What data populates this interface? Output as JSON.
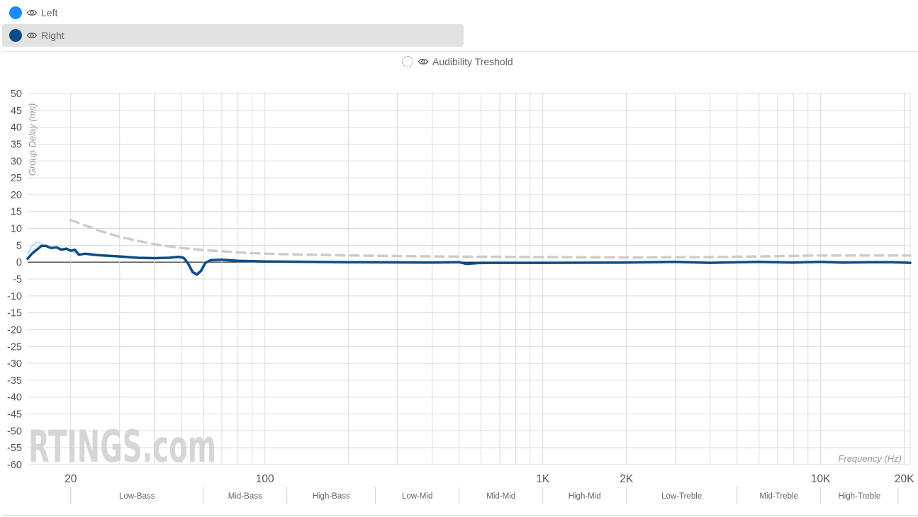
{
  "legend": {
    "items": [
      {
        "label": "Left",
        "color": "#1a8cff",
        "selected": false
      },
      {
        "label": "Right",
        "color": "#0b4c87",
        "selected": true
      }
    ],
    "threshold_label": "Audibility Treshold"
  },
  "chart_data": {
    "type": "line",
    "ylabel": "Group Delay (ms)",
    "xlabel": "Frequency (Hz)",
    "xscale": "log",
    "xlim": [
      14,
      21000
    ],
    "ylim": [
      -60,
      50
    ],
    "yticks": [
      50,
      45,
      40,
      35,
      30,
      25,
      20,
      15,
      10,
      5,
      0,
      -5,
      -10,
      -15,
      -20,
      -25,
      -30,
      -35,
      -40,
      -45,
      -50,
      -55,
      -60
    ],
    "xtick_labels": [
      {
        "value": 20,
        "label": "20"
      },
      {
        "value": 100,
        "label": "100"
      },
      {
        "value": 1000,
        "label": "1K"
      },
      {
        "value": 2000,
        "label": "2K"
      },
      {
        "value": 10000,
        "label": "10K"
      },
      {
        "value": 20000,
        "label": "20K"
      }
    ],
    "bands": [
      {
        "label": "Low-Bass",
        "from": 20,
        "to": 60
      },
      {
        "label": "Mid-Bass",
        "from": 60,
        "to": 120
      },
      {
        "label": "High-Bass",
        "from": 120,
        "to": 250
      },
      {
        "label": "Low-Mid",
        "from": 250,
        "to": 500
      },
      {
        "label": "Mid-Mid",
        "from": 500,
        "to": 1000
      },
      {
        "label": "High-Mid",
        "from": 1000,
        "to": 2000
      },
      {
        "label": "Low-Treble",
        "from": 2000,
        "to": 5000
      },
      {
        "label": "Mid-Treble",
        "from": 5000,
        "to": 10000
      },
      {
        "label": "High-Treble",
        "from": 10000,
        "to": 19000
      }
    ],
    "grid": true,
    "watermark": "RTINGS.com",
    "series": [
      {
        "name": "Left",
        "color": "#a8d4f5",
        "width": 1.5,
        "points": [
          [
            14,
            2.5
          ],
          [
            14.6,
            5
          ],
          [
            15.2,
            6
          ],
          [
            16,
            5
          ],
          [
            17,
            4.5
          ],
          [
            18,
            4
          ],
          [
            19,
            4
          ],
          [
            20,
            3.5
          ],
          [
            21,
            2.5
          ],
          [
            23,
            2.3
          ],
          [
            26,
            2
          ],
          [
            30,
            1.6
          ],
          [
            35,
            1.3
          ],
          [
            40,
            1.2
          ],
          [
            45,
            1.2
          ],
          [
            50,
            1.3
          ],
          [
            52,
            0.5
          ],
          [
            54,
            -1.5
          ],
          [
            56,
            -3.2
          ],
          [
            58,
            -2.8
          ],
          [
            60,
            -1
          ],
          [
            62,
            0.2
          ],
          [
            65,
            0.8
          ],
          [
            70,
            0.6
          ],
          [
            80,
            0.3
          ],
          [
            100,
            0.1
          ],
          [
            200,
            -0.1
          ],
          [
            500,
            -0.2
          ],
          [
            600,
            -0.5
          ],
          [
            700,
            -0.2
          ],
          [
            1000,
            -0.2
          ],
          [
            2000,
            0
          ],
          [
            3000,
            0.1
          ],
          [
            5000,
            -0.1
          ],
          [
            10000,
            0
          ],
          [
            20000,
            -0.2
          ],
          [
            21000,
            -0.2
          ]
        ]
      },
      {
        "name": "Right",
        "color": "#0b4c87",
        "width": 3.5,
        "points": [
          [
            14,
            1
          ],
          [
            14.5,
            2.5
          ],
          [
            15,
            3.5
          ],
          [
            15.7,
            4.8
          ],
          [
            16.3,
            4.8
          ],
          [
            17,
            4.2
          ],
          [
            17.8,
            4.4
          ],
          [
            18.5,
            3.7
          ],
          [
            19.3,
            4
          ],
          [
            20,
            3.4
          ],
          [
            20.7,
            3.7
          ],
          [
            21.4,
            2.2
          ],
          [
            22.5,
            2.5
          ],
          [
            25,
            2.1
          ],
          [
            30,
            1.7
          ],
          [
            35,
            1.3
          ],
          [
            40,
            1.2
          ],
          [
            45,
            1.3
          ],
          [
            49,
            1.6
          ],
          [
            51,
            1.3
          ],
          [
            53,
            -0.5
          ],
          [
            55,
            -3
          ],
          [
            57,
            -3.7
          ],
          [
            59,
            -2.5
          ],
          [
            61,
            -0.2
          ],
          [
            64,
            0.6
          ],
          [
            70,
            0.7
          ],
          [
            80,
            0.4
          ],
          [
            100,
            0.2
          ],
          [
            200,
            0
          ],
          [
            400,
            -0.1
          ],
          [
            500,
            0
          ],
          [
            530,
            -0.5
          ],
          [
            600,
            -0.2
          ],
          [
            800,
            -0.2
          ],
          [
            1000,
            -0.2
          ],
          [
            2000,
            -0.1
          ],
          [
            3000,
            0.1
          ],
          [
            4000,
            -0.2
          ],
          [
            6000,
            0.1
          ],
          [
            8000,
            -0.1
          ],
          [
            10000,
            0.1
          ],
          [
            12000,
            -0.1
          ],
          [
            15000,
            0
          ],
          [
            18000,
            0
          ],
          [
            21000,
            -0.2
          ]
        ]
      },
      {
        "name": "Audibility Treshold",
        "color": "#cccccc",
        "width": 3.5,
        "dash": "12 8",
        "points": [
          [
            20,
            12.5
          ],
          [
            25,
            9.5
          ],
          [
            30,
            7.5
          ],
          [
            40,
            5.3
          ],
          [
            50,
            4.2
          ],
          [
            60,
            3.6
          ],
          [
            80,
            2.9
          ],
          [
            100,
            2.5
          ],
          [
            150,
            2.2
          ],
          [
            200,
            2
          ],
          [
            400,
            1.7
          ],
          [
            1000,
            1.5
          ],
          [
            2000,
            1.4
          ],
          [
            4000,
            1.5
          ],
          [
            6000,
            1.7
          ],
          [
            10000,
            2
          ],
          [
            21000,
            2
          ]
        ]
      }
    ]
  }
}
